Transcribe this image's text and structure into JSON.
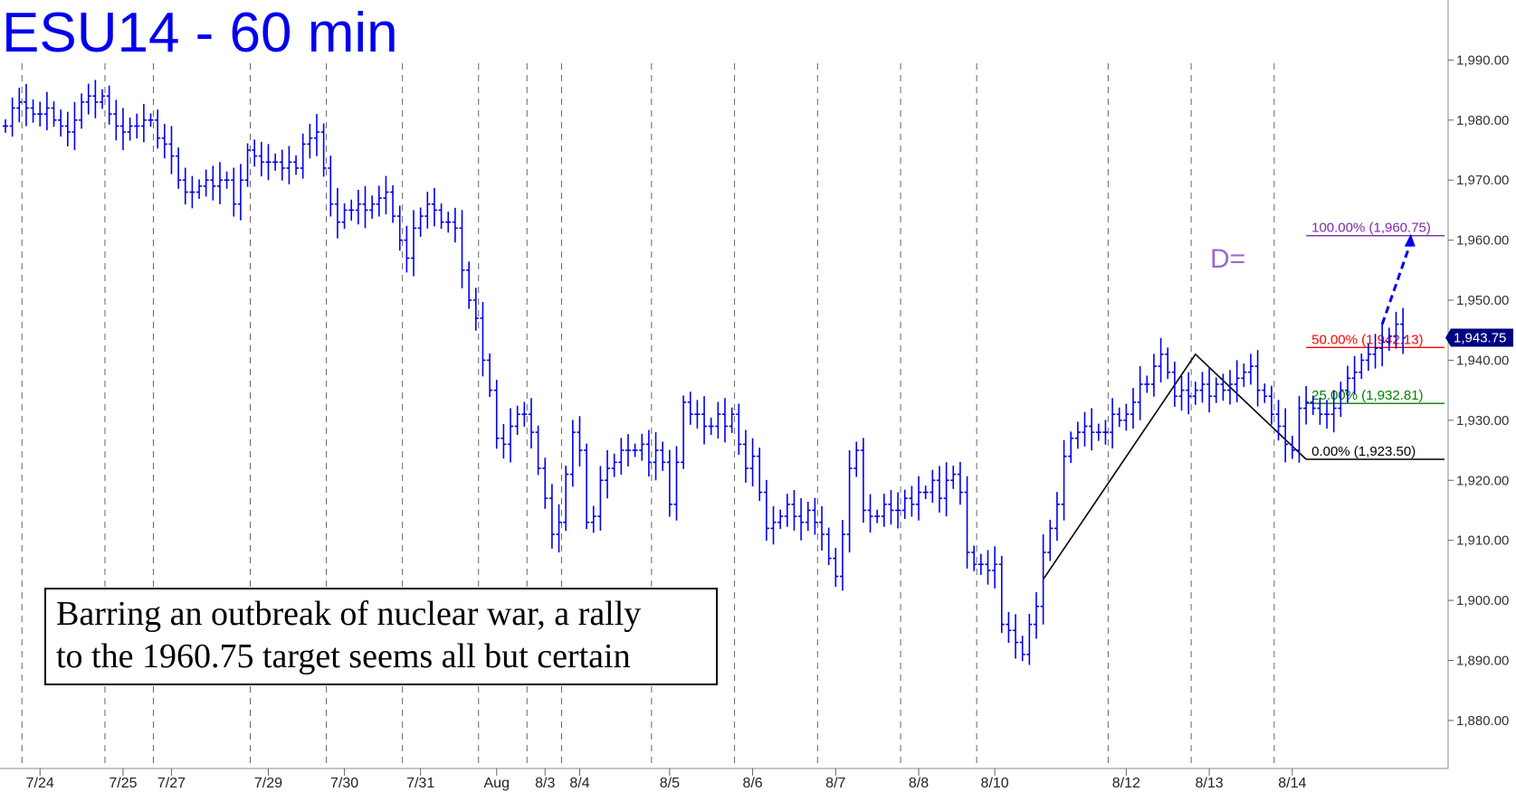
{
  "chart_data": {
    "type": "bar",
    "title": "ESU14 - 60 min",
    "y_axis": {
      "range": [
        1872,
        2000
      ],
      "tick_labels": [
        "1,880.00",
        "1,890.00",
        "1,900.00",
        "1,910.00",
        "1,920.00",
        "1,930.00",
        "1,940.00",
        "1,950.00",
        "1,960.00",
        "1,970.00",
        "1,980.00",
        "1,990.00"
      ],
      "tick_values": [
        1880,
        1890,
        1900,
        1910,
        1920,
        1930,
        1940,
        1950,
        1960,
        1970,
        1980,
        1990
      ]
    },
    "x_axis": {
      "tick_labels": [
        "7/24",
        "7/25",
        "7/27",
        "7/29",
        "7/30",
        "7/31",
        "Aug",
        "8/3",
        "8/4",
        "8/5",
        "8/6",
        "8/7",
        "8/8",
        "8/10",
        "8/12",
        "8/13",
        "8/14"
      ],
      "tick_index": [
        5,
        17,
        24,
        38,
        49,
        60,
        71,
        78,
        83,
        96,
        108,
        120,
        132,
        143,
        162,
        174,
        186
      ]
    },
    "grid": "vertical-dashed-session-lines",
    "series": [
      {
        "values": [
          1979,
          1982,
          1983,
          1982,
          1981,
          1981,
          1982,
          1980,
          1979,
          1978,
          1980,
          1983,
          1984,
          1983,
          1984,
          1981,
          1979,
          1978,
          1979,
          1979,
          1980,
          1980,
          1977,
          1976,
          1974,
          1970,
          1968,
          1968,
          1969,
          1970,
          1969,
          1970,
          1970,
          1966,
          1970,
          1975,
          1974,
          1973,
          1973,
          1973,
          1972,
          1973,
          1972,
          1976,
          1977,
          1978,
          1972,
          1966,
          1963,
          1965,
          1965,
          1966,
          1965,
          1966,
          1967,
          1968,
          1964,
          1960,
          1957,
          1962,
          1964,
          1966,
          1965,
          1963,
          1963,
          1962,
          1955,
          1950,
          1947,
          1940,
          1935,
          1927,
          1926,
          1929,
          1931,
          1931,
          1928,
          1922,
          1917,
          1911,
          1913,
          1921,
          1928,
          1925,
          1913,
          1914,
          1920,
          1922,
          1923,
          1925,
          1925,
          1925,
          1926,
          1923,
          1925,
          1923,
          1916,
          1923,
          1933,
          1931,
          1931,
          1929,
          1929,
          1931,
          1929,
          1931,
          1926,
          1922,
          1924,
          1918,
          1912,
          1913,
          1914,
          1916,
          1914,
          1913,
          1915,
          1913,
          1911,
          1907,
          1904,
          1911,
          1922,
          1925,
          1915,
          1914,
          1914,
          1916,
          1915,
          1915,
          1917,
          1916,
          1918,
          1918,
          1920,
          1917,
          1920,
          1921,
          1918,
          1908,
          1906,
          1906,
          1905,
          1906,
          1896,
          1895,
          1893,
          1891,
          1896,
          1899,
          1908,
          1912,
          1916,
          1924,
          1927,
          1928,
          1929,
          1928,
          1928,
          1928,
          1931,
          1930,
          1931,
          1933,
          1936,
          1936,
          1939,
          1941,
          1938,
          1934,
          1935,
          1934,
          1935,
          1936,
          1934,
          1936,
          1935,
          1936,
          1937,
          1938,
          1939,
          1935,
          1934,
          1931,
          1929,
          1926,
          1925,
          1932,
          1933,
          1932,
          1931,
          1931,
          1932,
          1935,
          1937,
          1938,
          1940,
          1941,
          1942,
          1943,
          1944,
          1946,
          1943.75
        ],
        "color": "#0000ee"
      }
    ],
    "fibonacci_levels": [
      {
        "label": "0.00% (1,923.50)",
        "value": 1923.5,
        "color": "#000000"
      },
      {
        "label": "25.00% (1,932.81)",
        "value": 1932.81,
        "color": "#008000"
      },
      {
        "label": "50.00% (1,942.13)",
        "value": 1942.13,
        "color": "#ff0000"
      },
      {
        "label": "100.00% (1,960.75)",
        "value": 1960.75,
        "color": "#7b2aa8"
      }
    ],
    "pattern_lines": {
      "points": [
        {
          "index": 150,
          "value": 1903.5
        },
        {
          "index": 172,
          "value": 1941.0
        },
        {
          "index": 188,
          "value": 1923.5
        }
      ],
      "color": "#000000"
    },
    "projection_arrow": {
      "from": {
        "index": 199,
        "value": 1946
      },
      "to": {
        "index": 203,
        "value": 1960.75
      },
      "color": "#0000ee"
    },
    "d_marker": "D=",
    "last_price": {
      "value": 1943.75,
      "label": "1,943.75",
      "color": "#000080"
    },
    "annotation": {
      "lines": [
        "Barring an outbreak of nuclear war, a rally",
        "to the 1960.75 target seems all but certain"
      ]
    }
  }
}
